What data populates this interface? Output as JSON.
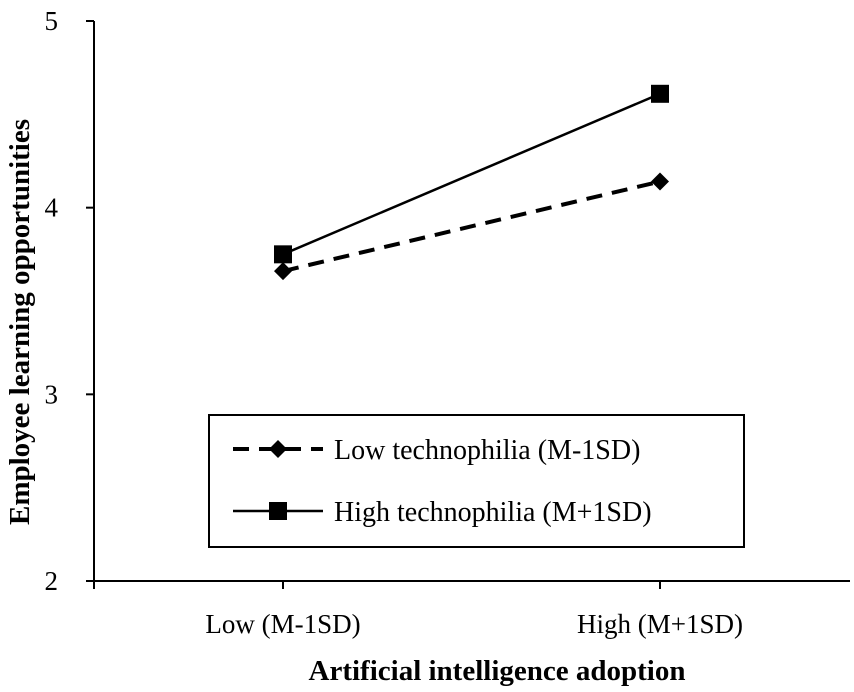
{
  "chart_data": {
    "type": "line",
    "title": "",
    "xlabel": "Artificial intelligence adoption",
    "ylabel": "Employee learning opportunities",
    "categories": [
      "Low (M-1SD)",
      "High (M+1SD)"
    ],
    "ylim": [
      2,
      5
    ],
    "yticks": [
      "2",
      "3",
      "4",
      "5"
    ],
    "grid": false,
    "legend_position": "lower-center",
    "series": [
      {
        "name": "Low technophilia (M-1SD)",
        "values": [
          3.66,
          4.14
        ],
        "marker": "diamond",
        "line_style": "dashed",
        "color": "#000000"
      },
      {
        "name": "High technophilia (M+1SD)",
        "values": [
          3.75,
          4.61
        ],
        "marker": "square",
        "line_style": "solid",
        "color": "#000000"
      }
    ]
  }
}
